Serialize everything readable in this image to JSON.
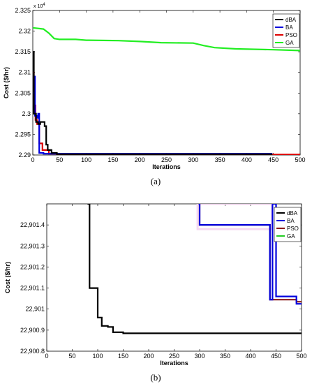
{
  "chart_data": [
    {
      "type": "line",
      "panel_label": "(a)",
      "xlabel": "Iterations",
      "ylabel": "Cost ($/hr)",
      "exponent_label": "x 10",
      "exponent_power": "4",
      "xlim": [
        0,
        500
      ],
      "ylim": [
        2.29,
        2.325
      ],
      "x_ticks": [
        0,
        50,
        100,
        150,
        200,
        250,
        300,
        350,
        400,
        450,
        500
      ],
      "y_ticks": [
        "2.29",
        "2.295",
        "2.3",
        "2.305",
        "2.31",
        "2.315",
        "2.32",
        "2.325"
      ],
      "y_tick_values": [
        2.29,
        2.295,
        2.3,
        2.305,
        2.31,
        2.315,
        2.32,
        2.325
      ],
      "legend_position": "top-right",
      "series": [
        {
          "name": "dBA",
          "color": "#000000",
          "points": [
            [
              0,
              2.315
            ],
            [
              2,
              2.315
            ],
            [
              2,
              2.3
            ],
            [
              6,
              2.3
            ],
            [
              6,
              2.298
            ],
            [
              10,
              2.298
            ],
            [
              10,
              2.2975
            ],
            [
              14,
              2.2975
            ],
            [
              14,
              2.298
            ],
            [
              22,
              2.298
            ],
            [
              22,
              2.297
            ],
            [
              25,
              2.297
            ],
            [
              25,
              2.2925
            ],
            [
              28,
              2.2925
            ],
            [
              28,
              2.2912
            ],
            [
              35,
              2.2912
            ],
            [
              35,
              2.2905
            ],
            [
              45,
              2.2905
            ],
            [
              45,
              2.2902
            ],
            [
              448,
              2.2902
            ]
          ]
        },
        {
          "name": "BA",
          "color": "#0000dd",
          "points": [
            [
              0,
              2.305
            ],
            [
              2,
              2.305
            ],
            [
              2,
              2.309
            ],
            [
              4,
              2.309
            ],
            [
              4,
              2.2995
            ],
            [
              8,
              2.2995
            ],
            [
              8,
              2.299
            ],
            [
              10,
              2.299
            ],
            [
              10,
              2.3
            ],
            [
              12,
              2.3
            ],
            [
              12,
              2.2905
            ],
            [
              20,
              2.2905
            ],
            [
              20,
              2.2903
            ],
            [
              448,
              2.2903
            ]
          ]
        },
        {
          "name": "PSO",
          "color": "#dd0000",
          "points": [
            [
              0,
              2.31
            ],
            [
              2,
              2.31
            ],
            [
              2,
              2.302
            ],
            [
              5,
              2.302
            ],
            [
              5,
              2.2985
            ],
            [
              8,
              2.2985
            ],
            [
              8,
              2.2975
            ],
            [
              12,
              2.2975
            ],
            [
              12,
              2.2928
            ],
            [
              18,
              2.2928
            ],
            [
              18,
              2.2912
            ],
            [
              30,
              2.2912
            ],
            [
              30,
              2.2903
            ],
            [
              45,
              2.2903
            ],
            [
              45,
              2.2901
            ],
            [
              500,
              2.2901
            ]
          ]
        },
        {
          "name": "GA",
          "color": "#22ee22",
          "points": [
            [
              0,
              2.3208
            ],
            [
              20,
              2.3205
            ],
            [
              30,
              2.3195
            ],
            [
              40,
              2.3182
            ],
            [
              50,
              2.318
            ],
            [
              80,
              2.318
            ],
            [
              100,
              2.3178
            ],
            [
              160,
              2.3177
            ],
            [
              200,
              2.3175
            ],
            [
              240,
              2.3172
            ],
            [
              300,
              2.3171
            ],
            [
              320,
              2.3165
            ],
            [
              340,
              2.316
            ],
            [
              380,
              2.3157
            ],
            [
              450,
              2.3155
            ],
            [
              500,
              2.3153
            ]
          ]
        }
      ]
    },
    {
      "type": "line",
      "panel_label": "(b)",
      "xlabel": "Iterations",
      "ylabel": "Cost ($/hr)",
      "xlim": [
        0,
        500
      ],
      "ylim": [
        22900.8,
        22901.5
      ],
      "x_ticks": [
        0,
        50,
        100,
        150,
        200,
        250,
        300,
        350,
        400,
        450,
        500
      ],
      "y_ticks": [
        "22,900.8",
        "22,900.9",
        "22,901",
        "22,901.1",
        "22,901.2",
        "22,901.3",
        "22,901.4"
      ],
      "y_tick_values": [
        22900.8,
        22900.9,
        22901,
        22901.1,
        22901.2,
        22901.3,
        22901.4
      ],
      "legend_position": "top-right",
      "series": [
        {
          "name": "dBA",
          "color": "#000000",
          "points": [
            [
              80,
              22901.5
            ],
            [
              84,
              22901.5
            ],
            [
              84,
              22901.1
            ],
            [
              100,
              22901.1
            ],
            [
              100,
              22900.96
            ],
            [
              108,
              22900.96
            ],
            [
              108,
              22900.92
            ],
            [
              120,
              22900.92
            ],
            [
              120,
              22900.915
            ],
            [
              130,
              22900.915
            ],
            [
              130,
              22900.89
            ],
            [
              150,
              22900.89
            ],
            [
              150,
              22900.885
            ],
            [
              500,
              22900.885
            ]
          ]
        },
        {
          "name": "BA",
          "color": "#0000dd",
          "points": [
            [
              298,
              22901.5
            ],
            [
              300,
              22901.5
            ],
            [
              300,
              22901.4
            ],
            [
              438,
              22901.4
            ],
            [
              438,
              22901.045
            ],
            [
              443,
              22901.045
            ],
            [
              443,
              22901.5
            ],
            [
              450,
              22901.5
            ],
            [
              450,
              22901.06
            ],
            [
              490,
              22901.06
            ],
            [
              490,
              22901.025
            ],
            [
              500,
              22901.025
            ]
          ]
        },
        {
          "name": "PSO",
          "color": "#8b1a1a",
          "points": [
            [
              298,
              22901.5
            ],
            [
              300,
              22901.5
            ],
            [
              300,
              22901.4
            ],
            [
              438,
              22901.4
            ],
            [
              438,
              22901.045
            ],
            [
              490,
              22901.045
            ],
            [
              490,
              22901.035
            ],
            [
              500,
              22901.035
            ]
          ]
        },
        {
          "name": "GA",
          "color": "#22cc22",
          "points": []
        }
      ]
    }
  ]
}
